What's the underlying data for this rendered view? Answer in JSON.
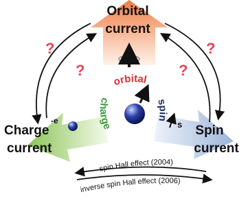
{
  "nodes": [
    {
      "label": "Orbital",
      "sublabel": "current"
    },
    {
      "label": "Charge",
      "sublabel": "current"
    },
    {
      "label": "Spin",
      "sublabel": "current"
    }
  ],
  "center": {
    "orbital": "orbital",
    "charge": "charge",
    "spin": "spin"
  },
  "electron_charge": "-e",
  "spin_symbol": "s",
  "question_marks": [
    "?",
    "?",
    "?",
    "?"
  ],
  "arrows": [
    {
      "label": "spin Hall effect (2004)"
    },
    {
      "label": "inverse spin Hall effect (2006)"
    }
  ]
}
